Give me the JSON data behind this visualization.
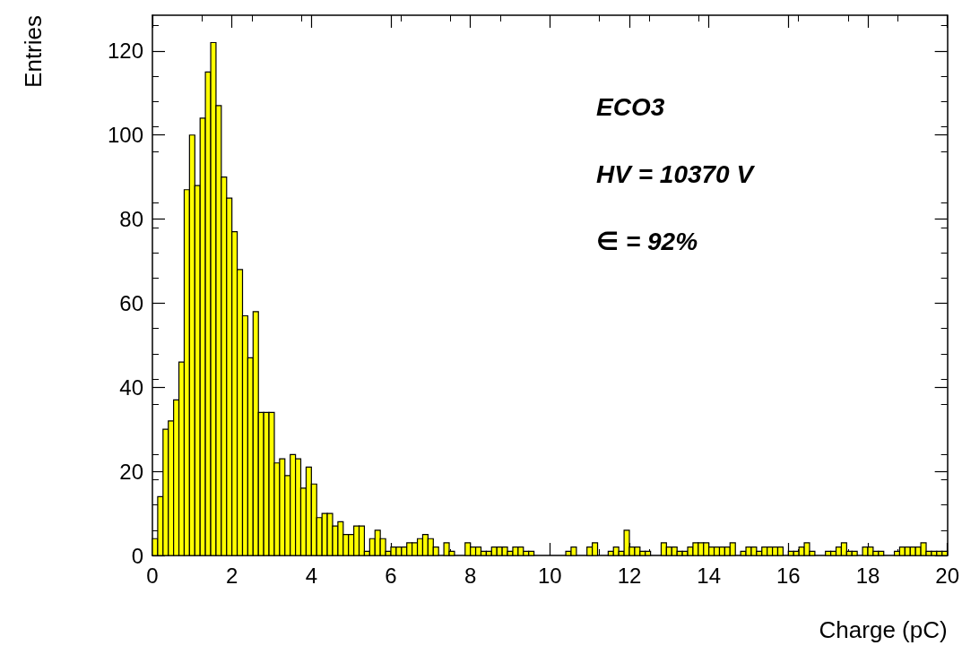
{
  "chart_data": {
    "type": "histogram",
    "xlabel": "Charge (pC)",
    "ylabel": "Entries",
    "annotations": [
      "ECO3",
      "HV = 10370 V",
      "∈ = 92%"
    ],
    "color": "#ffff00",
    "bins": [
      0,
      0.133,
      0.267,
      0.4,
      0.533,
      0.667,
      0.8,
      0.933,
      1.067,
      1.2,
      1.333,
      1.467,
      1.6,
      1.733,
      1.867,
      2,
      2.133,
      2.267,
      2.4,
      2.533,
      2.667,
      2.8,
      2.933,
      3.067,
      3.2,
      3.333,
      3.467,
      3.6,
      3.733,
      3.867,
      4,
      4.133,
      4.267,
      4.4,
      4.533,
      4.667,
      4.8,
      4.933,
      5.067,
      5.2,
      5.333,
      5.467,
      5.6,
      5.733,
      5.867,
      6,
      6.133,
      6.267,
      6.4,
      6.533,
      6.667,
      6.8,
      6.933,
      7.067,
      7.2,
      7.333,
      7.467,
      7.6,
      7.733,
      7.867,
      8,
      8.133,
      8.267,
      8.4,
      8.533,
      8.667,
      8.8,
      8.933,
      9.067,
      9.2,
      9.333,
      9.467,
      9.6,
      9.733,
      9.867,
      10,
      10.133,
      10.267,
      10.4,
      10.533,
      10.667,
      10.8,
      10.933,
      11.067,
      11.2,
      11.333,
      11.467,
      11.6,
      11.733,
      11.867,
      12,
      12.133,
      12.267,
      12.4,
      12.533,
      12.667,
      12.8,
      12.933,
      13.067,
      13.2,
      13.333,
      13.467,
      13.6,
      13.733,
      13.867,
      14,
      14.133,
      14.267,
      14.4,
      14.533,
      14.667,
      14.8,
      14.933,
      15.067,
      15.2,
      15.333,
      15.467,
      15.6,
      15.733,
      15.867,
      16,
      16.133,
      16.267,
      16.4,
      16.533,
      16.667,
      16.8,
      16.933,
      17.067,
      17.2,
      17.333,
      17.467,
      17.6,
      17.733,
      17.867,
      18,
      18.133,
      18.267,
      18.4,
      18.533,
      18.667,
      18.8,
      18.933,
      19.067,
      19.2,
      19.333,
      19.467,
      19.6,
      19.733,
      19.867,
      20
    ],
    "values": [
      4,
      14,
      30,
      32,
      37,
      46,
      87,
      100,
      88,
      104,
      115,
      122,
      107,
      90,
      85,
      77,
      68,
      57,
      47,
      58,
      34,
      34,
      34,
      22,
      23,
      19,
      24,
      23,
      16,
      21,
      17,
      9,
      10,
      10,
      7,
      8,
      5,
      5,
      7,
      7,
      1,
      4,
      6,
      4,
      1,
      2,
      2,
      2,
      3,
      3,
      4,
      5,
      4,
      2,
      0,
      3,
      1,
      0,
      0,
      3,
      2,
      2,
      1,
      1,
      2,
      2,
      2,
      1,
      2,
      2,
      1,
      1,
      0,
      0,
      0,
      0,
      0,
      0,
      1,
      2,
      0,
      0,
      2,
      3,
      0,
      0,
      1,
      2,
      1,
      6,
      2,
      2,
      1,
      1,
      0,
      0,
      3,
      2,
      2,
      1,
      1,
      2,
      3,
      3,
      3,
      2,
      2,
      2,
      2,
      3,
      0,
      1,
      2,
      2,
      1,
      2,
      2,
      2,
      2,
      0,
      1,
      1,
      2,
      3,
      1,
      0,
      0,
      1,
      1,
      2,
      3,
      1,
      1,
      0,
      2,
      2,
      1,
      1,
      0,
      0,
      1,
      2,
      2,
      2,
      2,
      3,
      1,
      1,
      1,
      1
    ],
    "xlim": [
      0,
      20
    ],
    "xticks": [
      0,
      2,
      4,
      6,
      8,
      10,
      12,
      14,
      16,
      18,
      20
    ],
    "ylim": [
      0,
      128.5
    ],
    "yticks": [
      0,
      20,
      40,
      60,
      80,
      100,
      120
    ],
    "grid": false
  }
}
